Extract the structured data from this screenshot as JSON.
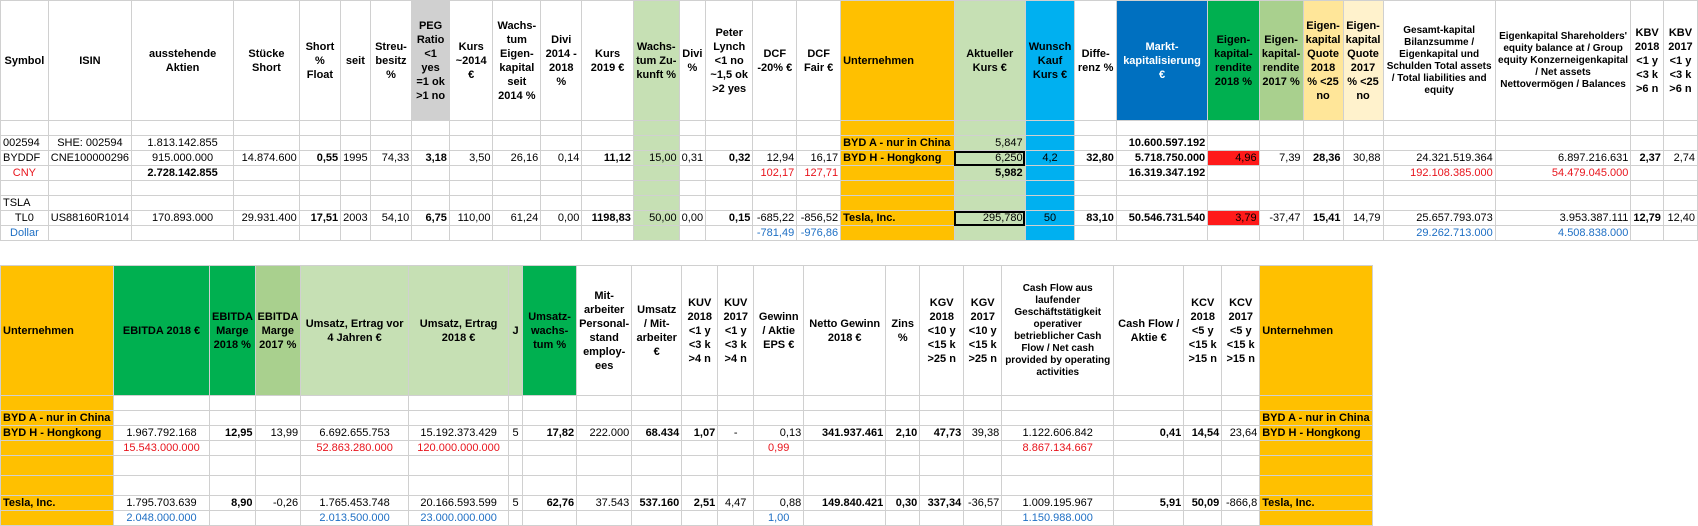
{
  "top_table": {
    "headers": {
      "symbol": "Symbol",
      "isin": "ISIN",
      "outstanding": "ausstehende Aktien",
      "shares_short": "Stücke Short",
      "short_float": "Short % Float",
      "since": "seit",
      "free_float": "Streu-besitz %",
      "peg": "PEG Ratio <1 yes =1 ok >1 no",
      "price2014": "Kurs ~2014 €",
      "growth_equity": "Wachs-tum Eigen-kapital seit 2014 %",
      "div": "Divi 2014 - 2018 %",
      "price2019": "Kurs 2019 €",
      "growth_future": "Wachs-tum Zu-kunft %",
      "divi2": "Divi %",
      "peter_lynch": "Peter Lynch <1 no ~1,5 ok >2 yes",
      "dcf20": "DCF -20% €",
      "dcf_fair": "DCF Fair €",
      "company": "Unternehmen",
      "current_price": "Aktueller Kurs €",
      "wish_price": "Wunsch Kauf Kurs €",
      "difference": "Diffe-renz %",
      "market_cap": "Markt-kapitalisierung €",
      "roe2018": "Eigen-kapital-rendite 2018 %",
      "roe2017": "Eigen-kapital-rendite 2017 %",
      "eq_ratio2018": "Eigen-kapital Quote 2018 % <25 no",
      "eq_ratio2017": "Eigen-kapital Quote 2017 % <25 no",
      "total_capital": "Gesamt-kapital Bilanzsumme / Eigenkapital und Schulden Total assets / Total liabilities and equity",
      "equity": "Eigenkapital Shareholders' equity balance at / Group equity Konzerneigenkapital / Net assets Nettovermögen / Balances",
      "kbv2018": "KBV 2018 <1 y <3 k >6 n",
      "kbv2017": "KBV 2017 <1 y <3 k >6 n"
    },
    "rows": [
      {
        "symbol": "",
        "isin": "",
        "outstanding": "",
        "shares_short": "",
        "short_float": "",
        "since": "",
        "free_float": "",
        "peg": "",
        "price2014": "",
        "growth_equity": "",
        "div": "",
        "price2019": "",
        "growth_future": "",
        "divi2": "",
        "peter_lynch": "",
        "dcf20": "",
        "dcf_fair": "",
        "company": "",
        "current_price": "",
        "wish_price": "",
        "difference": "",
        "market_cap": "",
        "roe2018": "",
        "roe2017": "",
        "eq_ratio2018": "",
        "eq_ratio2017": "",
        "total_capital": "",
        "equity": "",
        "kbv2018": "",
        "kbv2017": ""
      },
      {
        "symbol": "002594",
        "isin": "SHE: 002594",
        "outstanding": "1.813.142.855",
        "shares_short": "",
        "short_float": "",
        "since": "",
        "free_float": "",
        "peg": "",
        "price2014": "",
        "growth_equity": "",
        "div": "",
        "price2019": "",
        "growth_future": "",
        "divi2": "",
        "peter_lynch": "",
        "dcf20": "",
        "dcf_fair": "",
        "company": "BYD A - nur in China",
        "current_price": "5,847",
        "wish_price": "",
        "difference": "",
        "market_cap": "10.600.597.192",
        "roe2018": "",
        "roe2017": "",
        "eq_ratio2018": "",
        "eq_ratio2017": "",
        "total_capital": "",
        "equity": "",
        "kbv2018": "",
        "kbv2017": ""
      },
      {
        "symbol": "BYDDF",
        "isin": "CNE100000296",
        "outstanding": "915.000.000",
        "shares_short": "14.874.600",
        "short_float": "0,55",
        "since": "1995",
        "free_float": "74,33",
        "peg": "3,18",
        "price2014": "3,50",
        "growth_equity": "26,16",
        "div": "0,14",
        "price2019": "11,12",
        "growth_future": "15,00",
        "divi2": "0,31",
        "peter_lynch": "0,32",
        "dcf20": "12,94",
        "dcf_fair": "16,17",
        "company": "BYD H - Hongkong",
        "current_price": "6,250",
        "wish_price": "4,2",
        "difference": "32,80",
        "market_cap": "5.718.750.000",
        "roe2018": "4,96",
        "roe2017": "7,39",
        "eq_ratio2018": "28,36",
        "eq_ratio2017": "30,88",
        "total_capital": "24.321.519.364",
        "equity": "6.897.216.631",
        "kbv2018": "2,37",
        "kbv2017": "2,74"
      },
      {
        "symbol": "CNY",
        "isin": "",
        "outstanding": "2.728.142.855",
        "shares_short": "",
        "short_float": "",
        "since": "",
        "free_float": "",
        "peg": "",
        "price2014": "",
        "growth_equity": "",
        "div": "",
        "price2019": "",
        "growth_future": "",
        "divi2": "",
        "peter_lynch": "",
        "dcf20": "102,17",
        "dcf_fair": "127,71",
        "company": "",
        "current_price": "5,982",
        "wish_price": "",
        "difference": "",
        "market_cap": "16.319.347.192",
        "roe2018": "",
        "roe2017": "",
        "eq_ratio2018": "",
        "eq_ratio2017": "",
        "total_capital": "192.108.385.000",
        "equity": "54.479.045.000",
        "kbv2018": "",
        "kbv2017": ""
      },
      {
        "symbol": "",
        "isin": "",
        "outstanding": "",
        "shares_short": "",
        "short_float": "",
        "since": "",
        "free_float": "",
        "peg": "",
        "price2014": "",
        "growth_equity": "",
        "div": "",
        "price2019": "",
        "growth_future": "",
        "divi2": "",
        "peter_lynch": "",
        "dcf20": "",
        "dcf_fair": "",
        "company": "",
        "current_price": "",
        "wish_price": "",
        "difference": "",
        "market_cap": "",
        "roe2018": "",
        "roe2017": "",
        "eq_ratio2018": "",
        "eq_ratio2017": "",
        "total_capital": "",
        "equity": "",
        "kbv2018": "",
        "kbv2017": ""
      },
      {
        "symbol": "TSLA",
        "isin": "",
        "outstanding": "",
        "shares_short": "",
        "short_float": "",
        "since": "",
        "free_float": "",
        "peg": "",
        "price2014": "",
        "growth_equity": "",
        "div": "",
        "price2019": "",
        "growth_future": "",
        "divi2": "",
        "peter_lynch": "",
        "dcf20": "",
        "dcf_fair": "",
        "company": "",
        "current_price": "",
        "wish_price": "",
        "difference": "",
        "market_cap": "",
        "roe2018": "",
        "roe2017": "",
        "eq_ratio2018": "",
        "eq_ratio2017": "",
        "total_capital": "",
        "equity": "",
        "kbv2018": "",
        "kbv2017": ""
      },
      {
        "symbol": "TL0",
        "isin": "US88160R1014",
        "outstanding": "170.893.000",
        "shares_short": "29.931.400",
        "short_float": "17,51",
        "since": "2003",
        "free_float": "54,10",
        "peg": "6,75",
        "price2014": "110,00",
        "growth_equity": "61,24",
        "div": "0,00",
        "price2019": "1198,83",
        "growth_future": "50,00",
        "divi2": "0,00",
        "peter_lynch": "0,15",
        "dcf20": "-685,22",
        "dcf_fair": "-856,52",
        "company": "Tesla, Inc.",
        "current_price": "295,780",
        "wish_price": "50",
        "difference": "83,10",
        "market_cap": "50.546.731.540",
        "roe2018": "3,79",
        "roe2017": "-37,47",
        "eq_ratio2018": "15,41",
        "eq_ratio2017": "14,79",
        "total_capital": "25.657.793.073",
        "equity": "3.953.387.111",
        "kbv2018": "12,79",
        "kbv2017": "12,40"
      },
      {
        "symbol": "Dollar",
        "isin": "",
        "outstanding": "",
        "shares_short": "",
        "short_float": "",
        "since": "",
        "free_float": "",
        "peg": "",
        "price2014": "",
        "growth_equity": "",
        "div": "",
        "price2019": "",
        "growth_future": "",
        "divi2": "",
        "peter_lynch": "",
        "dcf20": "-781,49",
        "dcf_fair": "-976,86",
        "company": "",
        "current_price": "",
        "wish_price": "",
        "difference": "",
        "market_cap": "",
        "roe2018": "",
        "roe2017": "",
        "eq_ratio2018": "",
        "eq_ratio2017": "",
        "total_capital": "29.262.713.000",
        "equity": "4.508.838.000",
        "kbv2018": "",
        "kbv2017": ""
      }
    ]
  },
  "bottom_table": {
    "headers": {
      "company": "Unternehmen",
      "ebitda2018": "EBITDA 2018 €",
      "ebitda_margin2018": "EBITDA Marge 2018 %",
      "ebitda_margin2017": "EBITDA Marge 2017 %",
      "revenue4y": "Umsatz, Ertrag vor 4 Jahren €",
      "revenue2018": "Umsatz, Ertrag 2018 €",
      "j": "J",
      "revenue_growth": "Umsatz-wachs-tum %",
      "employees": "Mit-arbeiter Personal-stand employ-ees",
      "rev_per_emp": "Umsatz / Mit-arbeiter €",
      "kuv2018": "KUV 2018 <1 y <3 k >4 n",
      "kuv2017": "KUV 2017 <1 y <3 k >4 n",
      "eps": "Gewinn / Aktie EPS €",
      "net_income": "Netto Gewinn 2018 €",
      "interest": "Zins %",
      "kgv2018": "KGV 2018 <10 y <15 k >25 n",
      "kgv2017": "KGV 2017 <10 y <15 k >25 n",
      "cashflow": "Cash Flow aus laufender Geschäftstätigkeit operativer betrieblicher Cash Flow / Net cash provided by operating activities",
      "cf_per_share": "Cash Flow / Aktie €",
      "kcv2018": "KCV 2018 <5 y <15 k >15 n",
      "kcv2017": "KCV 2017 <5 y <15 k >15 n",
      "company2": "Unternehmen"
    },
    "rows": [
      {
        "company": "",
        "ebitda2018": "",
        "ebitda_margin2018": "",
        "ebitda_margin2017": "",
        "revenue4y": "",
        "revenue2018": "",
        "j": "",
        "revenue_growth": "",
        "employees": "",
        "rev_per_emp": "",
        "kuv2018": "",
        "kuv2017": "",
        "eps": "",
        "net_income": "",
        "interest": "",
        "kgv2018": "",
        "kgv2017": "",
        "cashflow": "",
        "cf_per_share": "",
        "kcv2018": "",
        "kcv2017": "",
        "company2": ""
      },
      {
        "company": "BYD A - nur in China",
        "ebitda2018": "",
        "ebitda_margin2018": "",
        "ebitda_margin2017": "",
        "revenue4y": "",
        "revenue2018": "",
        "j": "",
        "revenue_growth": "",
        "employees": "",
        "rev_per_emp": "",
        "kuv2018": "",
        "kuv2017": "",
        "eps": "",
        "net_income": "",
        "interest": "",
        "kgv2018": "",
        "kgv2017": "",
        "cashflow": "",
        "cf_per_share": "",
        "kcv2018": "",
        "kcv2017": "",
        "company2": "BYD A - nur in China"
      },
      {
        "company": "BYD H - Hongkong",
        "ebitda2018": "1.967.792.168",
        "ebitda_margin2018": "12,95",
        "ebitda_margin2017": "13,99",
        "revenue4y": "6.692.655.753",
        "revenue2018": "15.192.373.429",
        "j": "5",
        "revenue_growth": "17,82",
        "employees": "222.000",
        "rev_per_emp": "68.434",
        "kuv2018": "1,07",
        "kuv2017": "-",
        "eps": "0,13",
        "net_income": "341.937.461",
        "interest": "2,10",
        "kgv2018": "47,73",
        "kgv2017": "39,38",
        "cashflow": "1.122.606.842",
        "cf_per_share": "0,41",
        "kcv2018": "14,54",
        "kcv2017": "23,64",
        "company2": "BYD H - Hongkong"
      },
      {
        "company": "",
        "ebitda2018": "15.543.000.000",
        "ebitda_margin2018": "",
        "ebitda_margin2017": "",
        "revenue4y": "52.863.280.000",
        "revenue2018": "120.000.000.000",
        "j": "",
        "revenue_growth": "",
        "employees": "",
        "rev_per_emp": "",
        "kuv2018": "",
        "kuv2017": "",
        "eps": "0,99",
        "net_income": "",
        "interest": "",
        "kgv2018": "",
        "kgv2017": "",
        "cashflow": "8.867.134.667",
        "cf_per_share": "",
        "kcv2018": "",
        "kcv2017": "",
        "company2": ""
      },
      {
        "company": "",
        "ebitda2018": "",
        "ebitda_margin2018": "",
        "ebitda_margin2017": "",
        "revenue4y": "",
        "revenue2018": "",
        "j": "",
        "revenue_growth": "",
        "employees": "",
        "rev_per_emp": "",
        "kuv2018": "",
        "kuv2017": "",
        "eps": "",
        "net_income": "",
        "interest": "",
        "kgv2018": "",
        "kgv2017": "",
        "cashflow": "",
        "cf_per_share": "",
        "kcv2018": "",
        "kcv2017": "",
        "company2": ""
      },
      {
        "company": "",
        "ebitda2018": "",
        "ebitda_margin2018": "",
        "ebitda_margin2017": "",
        "revenue4y": "",
        "revenue2018": "",
        "j": "",
        "revenue_growth": "",
        "employees": "",
        "rev_per_emp": "",
        "kuv2018": "",
        "kuv2017": "",
        "eps": "",
        "net_income": "",
        "interest": "",
        "kgv2018": "",
        "kgv2017": "",
        "cashflow": "",
        "cf_per_share": "",
        "kcv2018": "",
        "kcv2017": "",
        "company2": ""
      },
      {
        "company": "Tesla, Inc.",
        "ebitda2018": "1.795.703.639",
        "ebitda_margin2018": "8,90",
        "ebitda_margin2017": "-0,26",
        "revenue4y": "1.765.453.748",
        "revenue2018": "20.166.593.599",
        "j": "5",
        "revenue_growth": "62,76",
        "employees": "37.543",
        "rev_per_emp": "537.160",
        "kuv2018": "2,51",
        "kuv2017": "4,47",
        "eps": "0,88",
        "net_income": "149.840.421",
        "interest": "0,30",
        "kgv2018": "337,34",
        "kgv2017": "-36,57",
        "cashflow": "1.009.195.967",
        "cf_per_share": "5,91",
        "kcv2018": "50,09",
        "kcv2017": "-866,8",
        "company2": "Tesla, Inc."
      },
      {
        "company": "",
        "ebitda2018": "2.048.000.000",
        "ebitda_margin2018": "",
        "ebitda_margin2017": "",
        "revenue4y": "2.013.500.000",
        "revenue2018": "23.000.000.000",
        "j": "",
        "revenue_growth": "",
        "employees": "",
        "rev_per_emp": "",
        "kuv2018": "",
        "kuv2017": "",
        "eps": "1,00",
        "net_income": "",
        "interest": "",
        "kgv2018": "",
        "kgv2017": "",
        "cashflow": "1.150.988.000",
        "cf_per_share": "",
        "kcv2018": "",
        "kcv2017": "",
        "company2": ""
      }
    ]
  }
}
